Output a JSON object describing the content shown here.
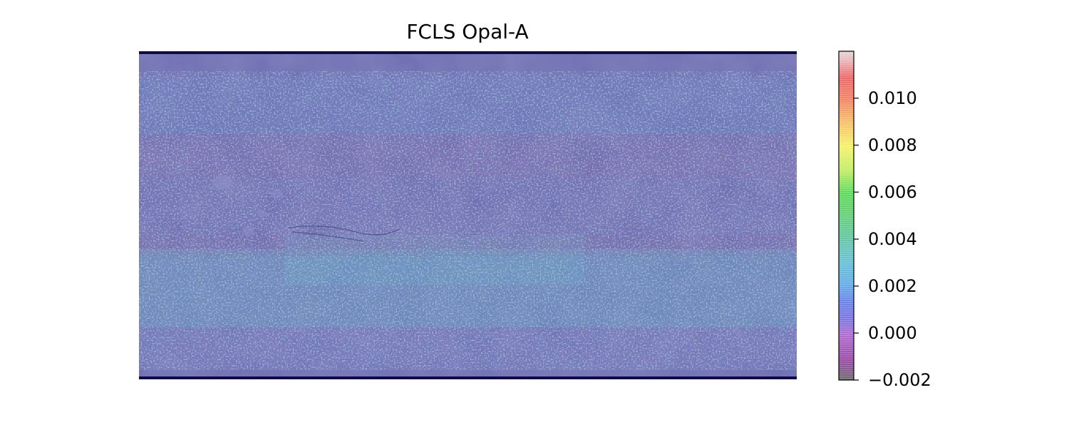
{
  "chart_data": {
    "type": "heatmap",
    "title": "FCLS Opal-A",
    "colorbar": {
      "min": -0.002,
      "max": 0.012,
      "ticks": [
        -0.002,
        0.0,
        0.002,
        0.004,
        0.006,
        0.008,
        0.01
      ],
      "tick_labels": [
        "−0.002",
        "0.000",
        "0.002",
        "0.004",
        "0.006",
        "0.008",
        "0.010"
      ],
      "colormap": "nipy_spectral (semi-transparent)"
    },
    "axes_visible": false,
    "basemap": "Mars shaded relief (global equirectangular)"
  }
}
